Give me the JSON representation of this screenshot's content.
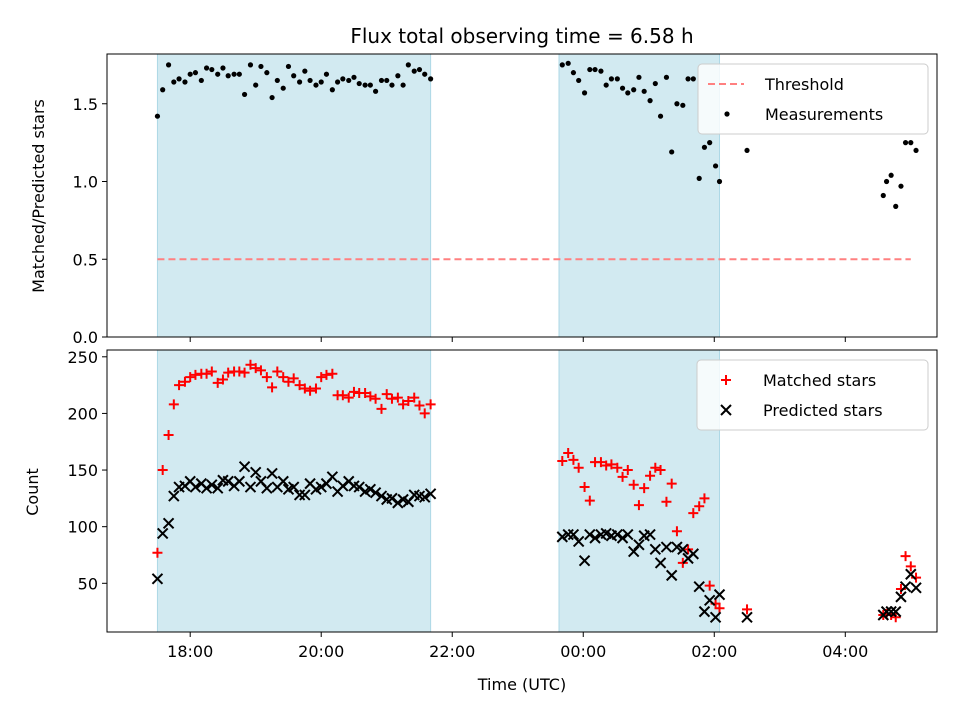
{
  "chart_data": {
    "type": "scatter",
    "title": "Flux total observing time = 6.58 h",
    "xlabel": "Time (UTC)",
    "x_tick_labels": [
      "18:00",
      "20:00",
      "22:00",
      "00:00",
      "02:00",
      "04:00"
    ],
    "x_ticks_hours": [
      18,
      20,
      22,
      24,
      26,
      28
    ],
    "xlim_hours": [
      16.73,
      29.4
    ],
    "shaded_intervals_hours": [
      [
        17.5,
        21.67
      ],
      [
        23.63,
        26.08
      ]
    ],
    "colors": {
      "shade": "#add8e6",
      "matched": "#ff0000",
      "predicted": "#000000",
      "threshold": "#ff8080",
      "measurements": "#000000"
    },
    "top_panel": {
      "ylabel": "Matched/Predicted stars",
      "ylim": [
        0,
        1.82
      ],
      "y_tick_labels": [
        "0.0",
        "0.5",
        "1.0",
        "1.5"
      ],
      "y_ticks": [
        0.0,
        0.5,
        1.0,
        1.5
      ],
      "legend": {
        "position": "upper right",
        "threshold_label": "Threshold",
        "measurements_label": "Measurements"
      },
      "threshold": {
        "value": 0.5,
        "x_range_hours": [
          17.5,
          29.0
        ]
      },
      "measurements": {
        "x": [
          17.5,
          17.58,
          17.67,
          17.75,
          17.83,
          17.92,
          18.0,
          18.08,
          18.17,
          18.25,
          18.33,
          18.42,
          18.5,
          18.58,
          18.67,
          18.75,
          18.83,
          18.92,
          19.0,
          19.08,
          19.17,
          19.25,
          19.33,
          19.42,
          19.5,
          19.58,
          19.67,
          19.75,
          19.83,
          19.92,
          20.0,
          20.08,
          20.17,
          20.25,
          20.33,
          20.42,
          20.5,
          20.58,
          20.67,
          20.75,
          20.83,
          20.92,
          21.0,
          21.08,
          21.17,
          21.25,
          21.33,
          21.42,
          21.5,
          21.58,
          21.67,
          23.68,
          23.77,
          23.85,
          23.93,
          24.02,
          24.1,
          24.18,
          24.27,
          24.35,
          24.43,
          24.52,
          24.6,
          24.68,
          24.77,
          24.85,
          24.93,
          25.02,
          25.1,
          25.18,
          25.27,
          25.35,
          25.43,
          25.52,
          25.6,
          25.68,
          25.77,
          25.85,
          25.93,
          26.02,
          26.08,
          26.5,
          28.58,
          28.63,
          28.7,
          28.77,
          28.85,
          28.92,
          29.0,
          29.08
        ],
        "y": [
          1.42,
          1.59,
          1.75,
          1.64,
          1.66,
          1.64,
          1.69,
          1.7,
          1.65,
          1.73,
          1.72,
          1.69,
          1.73,
          1.68,
          1.69,
          1.69,
          1.56,
          1.75,
          1.62,
          1.74,
          1.7,
          1.54,
          1.65,
          1.6,
          1.74,
          1.68,
          1.64,
          1.71,
          1.65,
          1.62,
          1.64,
          1.69,
          1.59,
          1.64,
          1.66,
          1.65,
          1.67,
          1.63,
          1.62,
          1.62,
          1.58,
          1.65,
          1.65,
          1.62,
          1.68,
          1.62,
          1.75,
          1.71,
          1.72,
          1.69,
          1.66,
          1.75,
          1.76,
          1.7,
          1.65,
          1.57,
          1.72,
          1.72,
          1.71,
          1.62,
          1.66,
          1.66,
          1.6,
          1.57,
          1.59,
          1.67,
          1.58,
          1.52,
          1.63,
          1.42,
          1.67,
          1.19,
          1.5,
          1.49,
          1.66,
          1.66,
          1.02,
          1.22,
          1.25,
          1.1,
          1.0,
          1.2,
          0.91,
          1.0,
          1.04,
          0.84,
          0.97,
          1.25,
          1.25,
          1.2
        ]
      }
    },
    "bottom_panel": {
      "ylabel": "Count",
      "ylim": [
        7,
        256
      ],
      "y_tick_labels": [
        "50",
        "100",
        "150",
        "200",
        "250"
      ],
      "y_ticks": [
        50,
        100,
        150,
        200,
        250
      ],
      "legend": {
        "position": "upper right",
        "matched_label": "Matched stars",
        "predicted_label": "Predicted stars"
      },
      "matched": {
        "x": [
          17.5,
          17.58,
          17.67,
          17.75,
          17.83,
          17.92,
          18.0,
          18.08,
          18.17,
          18.25,
          18.33,
          18.42,
          18.5,
          18.58,
          18.67,
          18.75,
          18.83,
          18.92,
          19.0,
          19.08,
          19.17,
          19.25,
          19.33,
          19.42,
          19.5,
          19.58,
          19.67,
          19.75,
          19.83,
          19.92,
          20.0,
          20.08,
          20.17,
          20.25,
          20.33,
          20.42,
          20.5,
          20.58,
          20.67,
          20.75,
          20.83,
          20.92,
          21.0,
          21.08,
          21.17,
          21.25,
          21.33,
          21.42,
          21.5,
          21.58,
          21.67,
          23.68,
          23.77,
          23.85,
          23.93,
          24.02,
          24.1,
          24.18,
          24.27,
          24.35,
          24.43,
          24.52,
          24.6,
          24.68,
          24.77,
          24.85,
          24.93,
          25.02,
          25.1,
          25.18,
          25.27,
          25.35,
          25.43,
          25.52,
          25.6,
          25.68,
          25.77,
          25.85,
          25.93,
          26.02,
          26.08,
          26.5,
          28.58,
          28.63,
          28.7,
          28.77,
          28.85,
          28.92,
          29.0,
          29.08
        ],
        "y": [
          77,
          150,
          181,
          208,
          225,
          228,
          232,
          234,
          235,
          235,
          237,
          227,
          230,
          236,
          237,
          237,
          236,
          243,
          240,
          238,
          232,
          223,
          237,
          232,
          228,
          231,
          225,
          222,
          220,
          222,
          232,
          234,
          235,
          216,
          216,
          214,
          219,
          218,
          218,
          215,
          213,
          204,
          217,
          213,
          214,
          208,
          211,
          214,
          207,
          200,
          208,
          158,
          165,
          159,
          152,
          135,
          123,
          157,
          157,
          154,
          155,
          152,
          144,
          150,
          137,
          119,
          134,
          145,
          152,
          150,
          122,
          138,
          96,
          68,
          80,
          112,
          118,
          125,
          48,
          32,
          28,
          27,
          22,
          23,
          22,
          20,
          45,
          74,
          65,
          55
        ]
      },
      "predicted": {
        "x": [
          17.5,
          17.58,
          17.67,
          17.75,
          17.83,
          17.92,
          18.0,
          18.08,
          18.17,
          18.25,
          18.33,
          18.42,
          18.5,
          18.58,
          18.67,
          18.75,
          18.83,
          18.92,
          19.0,
          19.08,
          19.17,
          19.25,
          19.33,
          19.42,
          19.5,
          19.58,
          19.67,
          19.75,
          19.83,
          19.92,
          20.0,
          20.08,
          20.17,
          20.25,
          20.33,
          20.42,
          20.5,
          20.58,
          20.67,
          20.75,
          20.83,
          20.92,
          21.0,
          21.08,
          21.17,
          21.25,
          21.33,
          21.42,
          21.5,
          21.58,
          21.67,
          23.68,
          23.77,
          23.85,
          23.93,
          24.02,
          24.1,
          24.18,
          24.27,
          24.35,
          24.43,
          24.52,
          24.6,
          24.68,
          24.77,
          24.85,
          24.93,
          25.02,
          25.1,
          25.18,
          25.27,
          25.35,
          25.43,
          25.52,
          25.6,
          25.68,
          25.77,
          25.85,
          25.93,
          26.02,
          26.08,
          26.5,
          28.58,
          28.63,
          28.7,
          28.77,
          28.85,
          28.92,
          29.0,
          29.08
        ],
        "y": [
          54,
          94,
          103,
          127,
          135,
          136,
          140,
          135,
          138,
          134,
          137,
          134,
          141,
          140,
          136,
          140,
          153,
          135,
          148,
          140,
          134,
          147,
          135,
          140,
          133,
          135,
          128,
          128,
          138,
          133,
          135,
          138,
          144,
          131,
          136,
          140,
          136,
          135,
          131,
          133,
          130,
          127,
          124,
          125,
          121,
          124,
          122,
          128,
          127,
          126,
          129,
          91,
          93,
          93,
          87,
          70,
          93,
          90,
          93,
          94,
          92,
          93,
          90,
          93,
          78,
          84,
          92,
          93,
          80,
          68,
          82,
          57,
          82,
          80,
          72,
          76,
          47,
          25,
          35,
          20,
          40,
          20,
          22,
          25,
          25,
          25,
          38,
          47,
          58,
          46
        ]
      }
    }
  }
}
